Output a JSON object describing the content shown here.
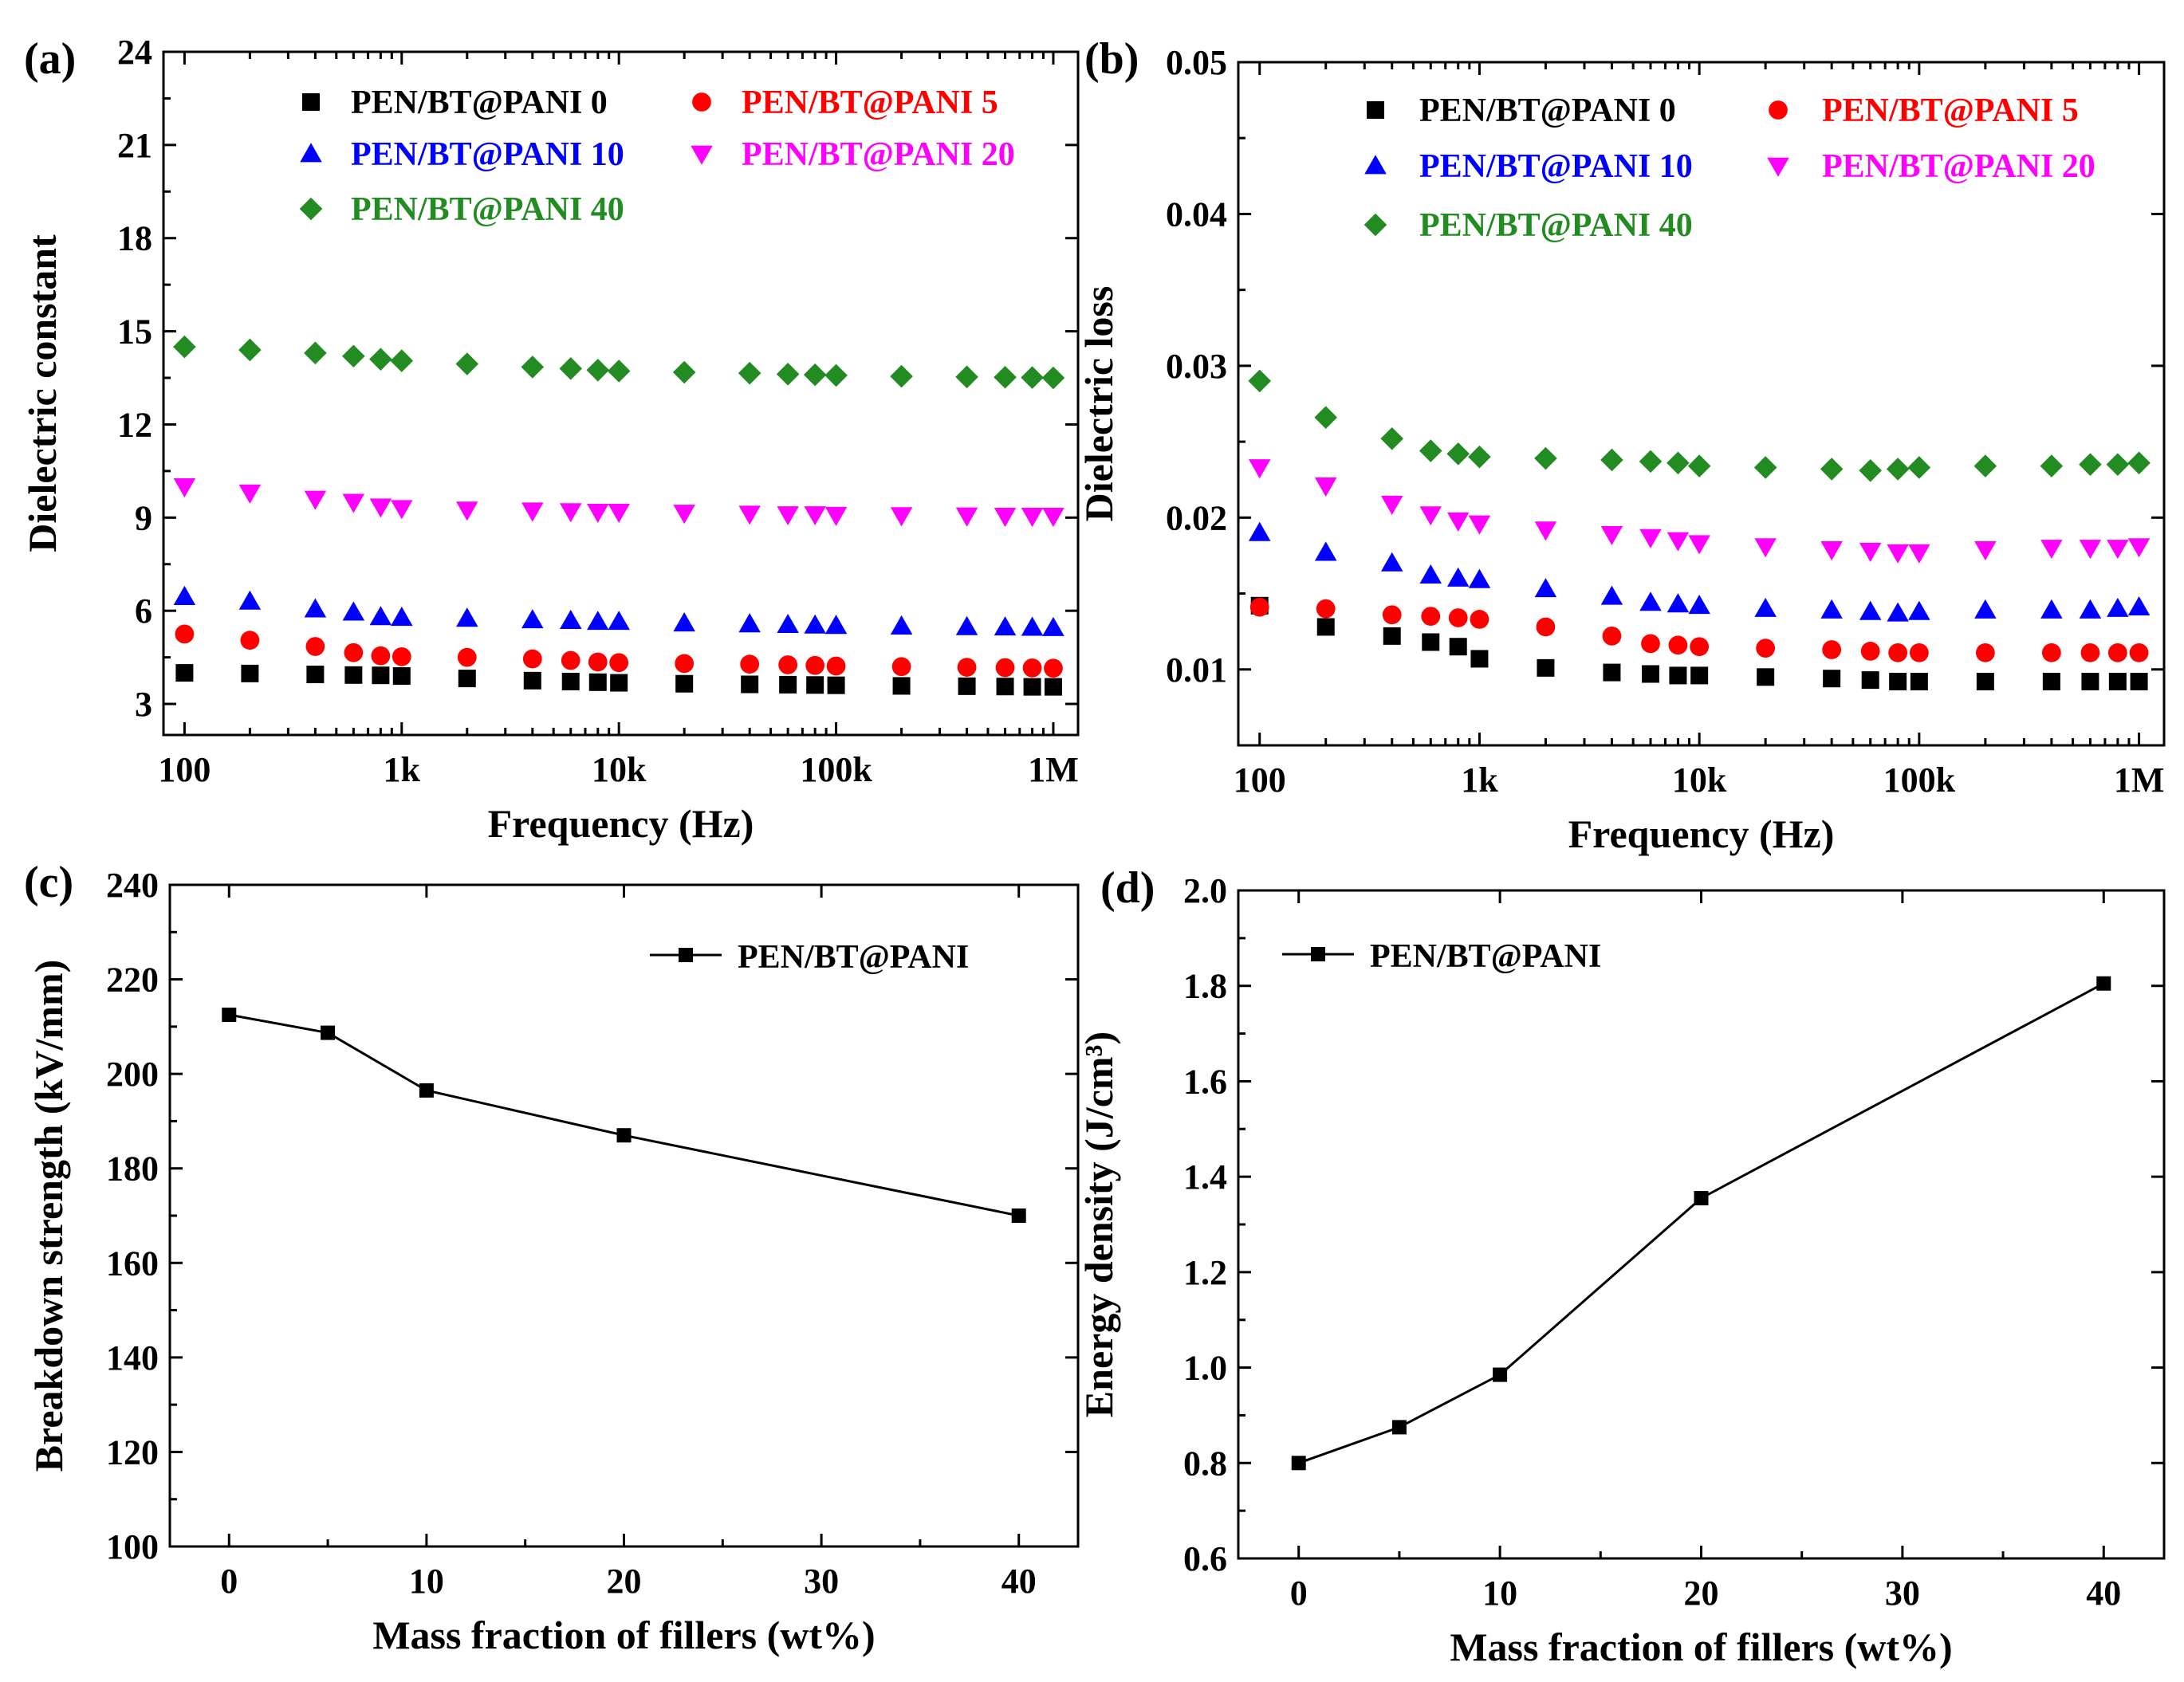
{
  "chart_data": [
    {
      "panel": "(a)",
      "type": "scatter",
      "xscale": "log",
      "xlabel": "Frequency (Hz)",
      "ylabel": "Dielectric constant",
      "xlim": [
        80,
        1300000
      ],
      "ylim": [
        2,
        24
      ],
      "xticks": [
        {
          "v": 100,
          "label": "100"
        },
        {
          "v": 1000,
          "label": "1k"
        },
        {
          "v": 10000,
          "label": "10k"
        },
        {
          "v": 100000,
          "label": "100k"
        },
        {
          "v": 1000000,
          "label": "1M"
        }
      ],
      "yticks": [
        3,
        6,
        9,
        12,
        15,
        18,
        21,
        24
      ],
      "legend_cols": 2,
      "legend_position": "top",
      "x": [
        100,
        200,
        400,
        600,
        800,
        1000,
        2000,
        4000,
        6000,
        8000,
        10000,
        20000,
        40000,
        60000,
        80000,
        100000,
        200000,
        400000,
        600000,
        800000,
        1000000
      ],
      "series": [
        {
          "name": "PEN/BT@PANI 0",
          "color": "#000000",
          "marker": "square",
          "values": [
            4.0,
            3.98,
            3.95,
            3.93,
            3.92,
            3.9,
            3.82,
            3.75,
            3.72,
            3.7,
            3.68,
            3.65,
            3.63,
            3.62,
            3.61,
            3.6,
            3.58,
            3.57,
            3.56,
            3.55,
            3.55
          ]
        },
        {
          "name": "PEN/BT@PANI 5",
          "color": "#ff0000",
          "marker": "circle",
          "values": [
            5.25,
            5.05,
            4.85,
            4.65,
            4.55,
            4.52,
            4.5,
            4.45,
            4.4,
            4.35,
            4.33,
            4.3,
            4.28,
            4.26,
            4.24,
            4.22,
            4.2,
            4.18,
            4.17,
            4.16,
            4.15
          ]
        },
        {
          "name": "PEN/BT@PANI 10",
          "color": "#0000ff",
          "marker": "triangle-up",
          "values": [
            6.45,
            6.3,
            6.05,
            5.95,
            5.8,
            5.78,
            5.75,
            5.7,
            5.68,
            5.65,
            5.65,
            5.6,
            5.57,
            5.55,
            5.53,
            5.52,
            5.5,
            5.48,
            5.47,
            5.46,
            5.45
          ]
        },
        {
          "name": "PEN/BT@PANI 20",
          "color": "#ff00ff",
          "marker": "triangle-down",
          "values": [
            10.0,
            9.8,
            9.6,
            9.5,
            9.35,
            9.3,
            9.25,
            9.22,
            9.2,
            9.18,
            9.18,
            9.15,
            9.12,
            9.1,
            9.1,
            9.08,
            9.07,
            9.06,
            9.05,
            9.05,
            9.05
          ]
        },
        {
          "name": "PEN/BT@PANI 40",
          "color": "#228b22",
          "marker": "diamond",
          "values": [
            14.5,
            14.4,
            14.3,
            14.2,
            14.1,
            14.05,
            13.95,
            13.85,
            13.8,
            13.75,
            13.72,
            13.68,
            13.65,
            13.62,
            13.6,
            13.58,
            13.55,
            13.53,
            13.52,
            13.51,
            13.5
          ]
        }
      ]
    },
    {
      "panel": "(b)",
      "type": "scatter",
      "xscale": "log",
      "xlabel": "Frequency (Hz)",
      "ylabel": "Dielectric loss",
      "xlim": [
        80,
        1300000
      ],
      "ylim": [
        0.005,
        0.05
      ],
      "xticks": [
        {
          "v": 100,
          "label": "100"
        },
        {
          "v": 1000,
          "label": "1k"
        },
        {
          "v": 10000,
          "label": "10k"
        },
        {
          "v": 100000,
          "label": "100k"
        },
        {
          "v": 1000000,
          "label": "1M"
        }
      ],
      "yticks": [
        {
          "v": 0.01,
          "label": "0.01"
        },
        {
          "v": 0.02,
          "label": "0.02"
        },
        {
          "v": 0.03,
          "label": "0.03"
        },
        {
          "v": 0.04,
          "label": "0.04"
        },
        {
          "v": 0.05,
          "label": "0.05"
        }
      ],
      "legend_cols": 2,
      "legend_position": "top",
      "x": [
        100,
        200,
        400,
        600,
        800,
        1000,
        2000,
        4000,
        6000,
        8000,
        10000,
        20000,
        40000,
        60000,
        80000,
        100000,
        200000,
        400000,
        600000,
        800000,
        1000000
      ],
      "series": [
        {
          "name": "PEN/BT@PANI 0",
          "color": "#000000",
          "marker": "square",
          "values": [
            0.0142,
            0.0128,
            0.0122,
            0.0118,
            0.0115,
            0.0107,
            0.0101,
            0.0098,
            0.0097,
            0.0096,
            0.0096,
            0.0095,
            0.0094,
            0.0093,
            0.0092,
            0.0092,
            0.0092,
            0.0092,
            0.0092,
            0.0092,
            0.0092
          ]
        },
        {
          "name": "PEN/BT@PANI 5",
          "color": "#ff0000",
          "marker": "circle",
          "values": [
            0.0141,
            0.014,
            0.0136,
            0.0135,
            0.0134,
            0.0133,
            0.0128,
            0.0122,
            0.0117,
            0.0116,
            0.0115,
            0.0114,
            0.0113,
            0.0112,
            0.0111,
            0.0111,
            0.0111,
            0.0111,
            0.0111,
            0.0111,
            0.0111
          ]
        },
        {
          "name": "PEN/BT@PANI 10",
          "color": "#0000ff",
          "marker": "triangle-up",
          "values": [
            0.019,
            0.0177,
            0.017,
            0.0162,
            0.016,
            0.0159,
            0.0153,
            0.0148,
            0.0144,
            0.0143,
            0.0142,
            0.014,
            0.0139,
            0.0138,
            0.0137,
            0.0138,
            0.0139,
            0.0139,
            0.0139,
            0.014,
            0.0141
          ]
        },
        {
          "name": "PEN/BT@PANI 20",
          "color": "#ff00ff",
          "marker": "triangle-down",
          "values": [
            0.0233,
            0.0221,
            0.0209,
            0.0202,
            0.0198,
            0.0196,
            0.0192,
            0.0189,
            0.0187,
            0.0185,
            0.0183,
            0.0181,
            0.0179,
            0.0178,
            0.0177,
            0.0177,
            0.0179,
            0.018,
            0.018,
            0.018,
            0.0181
          ]
        },
        {
          "name": "PEN/BT@PANI 40",
          "color": "#228b22",
          "marker": "diamond",
          "values": [
            0.029,
            0.0266,
            0.0252,
            0.0244,
            0.0242,
            0.024,
            0.0239,
            0.0238,
            0.0237,
            0.0236,
            0.0234,
            0.0233,
            0.0232,
            0.0231,
            0.0232,
            0.0233,
            0.0234,
            0.0234,
            0.0235,
            0.0235,
            0.0236
          ]
        }
      ]
    },
    {
      "panel": "(c)",
      "type": "line",
      "xlabel": "Mass fraction of  fillers (wt%)",
      "ylabel": "Breakdown strength (kV/mm)",
      "xlim": [
        -3,
        43
      ],
      "ylim": [
        100,
        240
      ],
      "xticks": [
        0,
        10,
        20,
        30,
        40
      ],
      "yticks": [
        100,
        120,
        140,
        160,
        180,
        200,
        220,
        240
      ],
      "legend_position": "top-right",
      "x": [
        0,
        5,
        10,
        20,
        40
      ],
      "series": [
        {
          "name": "PEN/BT@PANI",
          "color": "#000000",
          "marker": "square",
          "values": [
            212.5,
            208.7,
            196.5,
            187,
            170
          ]
        }
      ]
    },
    {
      "panel": "(d)",
      "type": "line",
      "xlabel": "Mass fraction of  fillers (wt%)",
      "ylabel": "Energy density (J/cm³)",
      "xlim": [
        -3,
        43
      ],
      "ylim": [
        0.6,
        2.0
      ],
      "xticks": [
        0,
        10,
        20,
        30,
        40
      ],
      "yticks": [
        {
          "v": 0.6,
          "label": "0.6"
        },
        {
          "v": 0.8,
          "label": "0.8"
        },
        {
          "v": 1.0,
          "label": "1.0"
        },
        {
          "v": 1.2,
          "label": "1.2"
        },
        {
          "v": 1.4,
          "label": "1.4"
        },
        {
          "v": 1.6,
          "label": "1.6"
        },
        {
          "v": 1.8,
          "label": "1.8"
        },
        {
          "v": 2.0,
          "label": "2.0"
        }
      ],
      "legend_position": "top-left",
      "x": [
        0,
        5,
        10,
        20,
        40
      ],
      "series": [
        {
          "name": "PEN/BT@PANI",
          "color": "#000000",
          "marker": "square",
          "values": [
            0.8,
            0.875,
            0.985,
            1.355,
            1.805
          ]
        }
      ]
    }
  ]
}
